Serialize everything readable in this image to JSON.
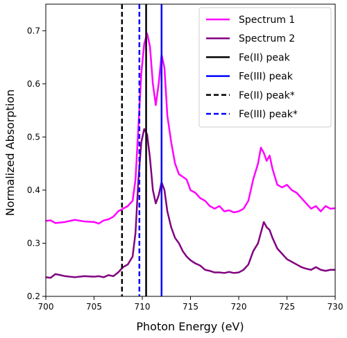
{
  "chart_data": {
    "type": "line",
    "xlabel": "Photon Energy (eV)",
    "ylabel": "Normalized Absorption",
    "xlim": [
      700,
      730
    ],
    "ylim": [
      0.2,
      0.75
    ],
    "xticks": [
      700,
      705,
      710,
      715,
      720,
      725,
      730
    ],
    "yticks": [
      0.2,
      0.3,
      0.4,
      0.5,
      0.6,
      0.7
    ],
    "grid": false,
    "legend_position": "top-right",
    "series": [
      {
        "name": "Spectrum 1",
        "color": "#ff00ff",
        "style": "solid",
        "x": [
          700,
          700.5,
          701,
          702,
          703,
          704,
          705,
          705.5,
          706,
          706.5,
          707,
          707.5,
          708,
          708.5,
          709,
          709.3,
          709.6,
          709.9,
          710.2,
          710.5,
          710.8,
          711.1,
          711.4,
          711.7,
          712,
          712.3,
          712.6,
          713,
          713.4,
          713.8,
          714.2,
          714.6,
          715,
          715.5,
          716,
          716.5,
          717,
          717.5,
          718,
          718.5,
          719,
          719.5,
          720,
          720.5,
          721,
          721.5,
          722,
          722.3,
          722.6,
          722.9,
          723.2,
          723.5,
          724,
          724.5,
          725,
          725.5,
          726,
          726.5,
          727,
          727.5,
          728,
          728.5,
          729,
          729.5,
          730
        ],
        "y": [
          0.342,
          0.343,
          0.338,
          0.34,
          0.344,
          0.341,
          0.34,
          0.337,
          0.343,
          0.345,
          0.35,
          0.36,
          0.365,
          0.37,
          0.38,
          0.42,
          0.52,
          0.62,
          0.675,
          0.695,
          0.67,
          0.6,
          0.56,
          0.6,
          0.655,
          0.63,
          0.54,
          0.49,
          0.45,
          0.43,
          0.425,
          0.42,
          0.4,
          0.395,
          0.385,
          0.38,
          0.37,
          0.365,
          0.37,
          0.36,
          0.362,
          0.358,
          0.36,
          0.365,
          0.38,
          0.42,
          0.45,
          0.48,
          0.47,
          0.455,
          0.465,
          0.44,
          0.41,
          0.405,
          0.41,
          0.4,
          0.395,
          0.385,
          0.375,
          0.365,
          0.37,
          0.36,
          0.37,
          0.365,
          0.366
        ]
      },
      {
        "name": "Spectrum 2",
        "color": "#800080",
        "style": "solid",
        "x": [
          700,
          700.5,
          701,
          702,
          703,
          704,
          705,
          705.5,
          706,
          706.5,
          707,
          707.5,
          708,
          708.5,
          709,
          709.3,
          709.6,
          709.9,
          710.2,
          710.5,
          710.8,
          711.1,
          711.4,
          711.7,
          712,
          712.3,
          712.6,
          713,
          713.4,
          713.8,
          714.2,
          714.6,
          715,
          715.5,
          716,
          716.5,
          717,
          717.5,
          718,
          718.5,
          719,
          719.5,
          720,
          720.5,
          721,
          721.5,
          722,
          722.3,
          722.6,
          722.9,
          723.2,
          723.5,
          724,
          724.5,
          725,
          725.5,
          726,
          726.5,
          727,
          727.5,
          728,
          728.5,
          729,
          729.5,
          730
        ],
        "y": [
          0.236,
          0.235,
          0.242,
          0.238,
          0.236,
          0.238,
          0.237,
          0.238,
          0.236,
          0.24,
          0.238,
          0.245,
          0.255,
          0.26,
          0.275,
          0.32,
          0.42,
          0.49,
          0.515,
          0.505,
          0.46,
          0.4,
          0.375,
          0.39,
          0.415,
          0.4,
          0.36,
          0.33,
          0.31,
          0.3,
          0.285,
          0.275,
          0.268,
          0.262,
          0.258,
          0.25,
          0.248,
          0.245,
          0.245,
          0.244,
          0.246,
          0.244,
          0.245,
          0.25,
          0.26,
          0.285,
          0.3,
          0.32,
          0.34,
          0.33,
          0.325,
          0.31,
          0.29,
          0.28,
          0.27,
          0.265,
          0.26,
          0.255,
          0.252,
          0.25,
          0.255,
          0.25,
          0.248,
          0.25,
          0.25
        ]
      }
    ],
    "vlines": [
      {
        "name": "Fe(II) peak",
        "x": 710.4,
        "color": "#000000",
        "style": "solid"
      },
      {
        "name": "Fe(III) peak",
        "x": 712.0,
        "color": "#0000ff",
        "style": "solid"
      },
      {
        "name": "Fe(II) peak*",
        "x": 707.9,
        "color": "#000000",
        "style": "dashed"
      },
      {
        "name": "Fe(III) peak*",
        "x": 709.7,
        "color": "#0000ff",
        "style": "dashed"
      }
    ],
    "legend": [
      {
        "label": "Spectrum 1",
        "color": "#ff00ff",
        "style": "solid"
      },
      {
        "label": "Spectrum 2",
        "color": "#800080",
        "style": "solid"
      },
      {
        "label": "Fe(II) peak",
        "color": "#000000",
        "style": "solid"
      },
      {
        "label": "Fe(III) peak",
        "color": "#0000ff",
        "style": "solid"
      },
      {
        "label": "Fe(II) peak*",
        "color": "#000000",
        "style": "dashed"
      },
      {
        "label": "Fe(III) peak*",
        "color": "#0000ff",
        "style": "dashed"
      }
    ]
  }
}
